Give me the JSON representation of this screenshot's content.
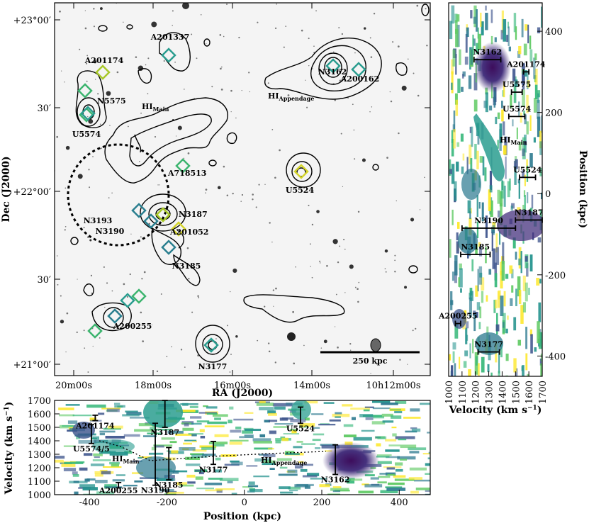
{
  "chart_data": [
    {
      "panel": "sky-map",
      "type": "scatter",
      "xlabel": "RA (J2000)",
      "ylabel": "Dec (J2000)",
      "xticks": [
        "20m00s",
        "18m00s",
        "16m00s",
        "14m00s",
        "10h12m00s"
      ],
      "yticks": [
        "+23°00′",
        "30′",
        "+22°00′",
        "30′",
        "+21°00′"
      ],
      "scalebar_label": "250 kpc",
      "region_labels": [
        {
          "id": "himain",
          "base": "HI",
          "sub": "Main"
        },
        {
          "id": "hiapp",
          "base": "HI",
          "sub": "Appendage"
        }
      ],
      "galaxies": [
        {
          "id": "A201337",
          "name": "A201337",
          "color": "#2a9d8f"
        },
        {
          "id": "A201174",
          "name": "A201174",
          "color": "#a8c82a"
        },
        {
          "id": "N5575",
          "name": "N5575",
          "color": "#3cb46e"
        },
        {
          "id": "U5574",
          "name": "U5574",
          "color": "#2a9d8f"
        },
        {
          "id": "A718513",
          "name": "A718513",
          "color": "#3cb46e"
        },
        {
          "id": "N3193",
          "name": "N3193",
          "color": "#000000"
        },
        {
          "id": "N3190",
          "name": "N3190",
          "color": "#2a7f8f"
        },
        {
          "id": "N3187",
          "name": "N3187",
          "color": "#a8c82a"
        },
        {
          "id": "A201052",
          "name": "A201052",
          "color": "#d4d42a"
        },
        {
          "id": "N3185",
          "name": "N3185",
          "color": "#2a7f8f"
        },
        {
          "id": "A200255",
          "name": "A200255",
          "color": "#2a7f8f"
        },
        {
          "id": "N3177",
          "name": "N3177",
          "color": "#2a9d8f"
        },
        {
          "id": "N3162",
          "name": "N3162",
          "color": "#2a9d8f"
        },
        {
          "id": "A200162",
          "name": "A200162",
          "color": "#2a9d8f"
        },
        {
          "id": "U5524",
          "name": "U5524",
          "color": "#d4d42a"
        }
      ]
    },
    {
      "panel": "velocity-vs-position",
      "type": "heatmap",
      "xlabel": "Velocity (km s⁻¹)",
      "ylabel": "Position (kpc)",
      "xlim": [
        1000,
        1700
      ],
      "ylim": [
        -450,
        470
      ],
      "xticks": [
        1000,
        1100,
        1200,
        1300,
        1400,
        1500,
        1600,
        1700
      ],
      "yticks": [
        400,
        200,
        0,
        -200,
        -400
      ],
      "galaxies": [
        {
          "name": "N3162",
          "v": 1290,
          "v_err": 100,
          "pos": 330
        },
        {
          "name": "A201174",
          "v": 1580,
          "v_err": 20,
          "pos": 300
        },
        {
          "name": "U5575",
          "v": 1510,
          "v_err": 40,
          "pos": 250
        },
        {
          "name": "U5574",
          "v": 1510,
          "v_err": 60,
          "pos": 190
        },
        {
          "name": "U5524",
          "v": 1590,
          "v_err": 60,
          "pos": 40
        },
        {
          "name": "N3187",
          "v": 1600,
          "v_err": 100,
          "pos": -65
        },
        {
          "name": "N3190",
          "v": 1300,
          "v_err": 200,
          "pos": -85
        },
        {
          "name": "N3185",
          "v": 1200,
          "v_err": 110,
          "pos": -150
        },
        {
          "name": "A200255",
          "v": 1070,
          "v_err": 20,
          "pos": -320
        },
        {
          "name": "N3177",
          "v": 1300,
          "v_err": 80,
          "pos": -390
        }
      ],
      "region_labels": [
        {
          "id": "himain",
          "base": "HI",
          "sub": "Main"
        }
      ]
    },
    {
      "panel": "position-vs-velocity",
      "type": "heatmap",
      "xlabel": "Position (kpc)",
      "ylabel": "Velocity (km s⁻¹)",
      "xlim": [
        -490,
        480
      ],
      "ylim": [
        1000,
        1700
      ],
      "xticks": [
        -400,
        -200,
        0,
        200,
        400
      ],
      "yticks": [
        1000,
        1100,
        1200,
        1300,
        1400,
        1500,
        1600,
        1700
      ],
      "galaxies": [
        {
          "name": "U5574/5",
          "pos": -395,
          "v": 1450,
          "v_err": 70
        },
        {
          "name": "A201174",
          "pos": -385,
          "v": 1570,
          "v_err": 20
        },
        {
          "name": "N3187",
          "pos": -205,
          "v": 1600,
          "v_err": 100
        },
        {
          "name": "N3190",
          "pos": -230,
          "v": 1300,
          "v_err": 230
        },
        {
          "name": "N3185",
          "pos": -195,
          "v": 1230,
          "v_err": 120
        },
        {
          "name": "A200255",
          "pos": -325,
          "v": 1070,
          "v_err": 20
        },
        {
          "name": "N3177",
          "pos": -80,
          "v": 1310,
          "v_err": 85
        },
        {
          "name": "U5524",
          "pos": 145,
          "v": 1590,
          "v_err": 60
        },
        {
          "name": "N3162",
          "pos": 235,
          "v": 1260,
          "v_err": 110
        }
      ],
      "region_labels": [
        {
          "id": "himain",
          "base": "HI",
          "sub": "Main"
        },
        {
          "id": "hiapp",
          "base": "HI",
          "sub": "Appendage"
        }
      ]
    }
  ]
}
